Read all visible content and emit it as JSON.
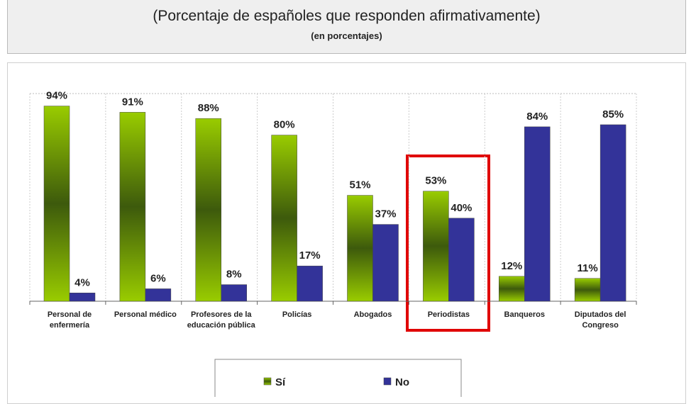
{
  "chart_data": {
    "type": "bar",
    "subtitle": "(Porcentaje de españoles que responden afirmativamente)",
    "note": "(en porcentajes)",
    "categories": [
      "Personal de enfermería",
      "Personal médico",
      "Profesores de la educación pública",
      "Policías",
      "Abogados",
      "Periodistas",
      "Banqueros",
      "Diputados del Congreso"
    ],
    "series": [
      {
        "name": "Sí",
        "color": "#99cc00",
        "values": [
          94,
          91,
          88,
          80,
          51,
          53,
          12,
          11
        ],
        "value_labels": [
          "94%",
          "91%",
          "88%",
          "80%",
          "51%",
          "53%",
          "12%",
          "11%"
        ]
      },
      {
        "name": "No",
        "color": "#333399",
        "values": [
          4,
          6,
          8,
          17,
          37,
          40,
          84,
          85
        ],
        "value_labels": [
          "4%",
          "6%",
          "8%",
          "17%",
          "37%",
          "40%",
          "84%",
          "85%"
        ]
      }
    ],
    "ylim": [
      0,
      100
    ],
    "legend": "bottom"
  }
}
